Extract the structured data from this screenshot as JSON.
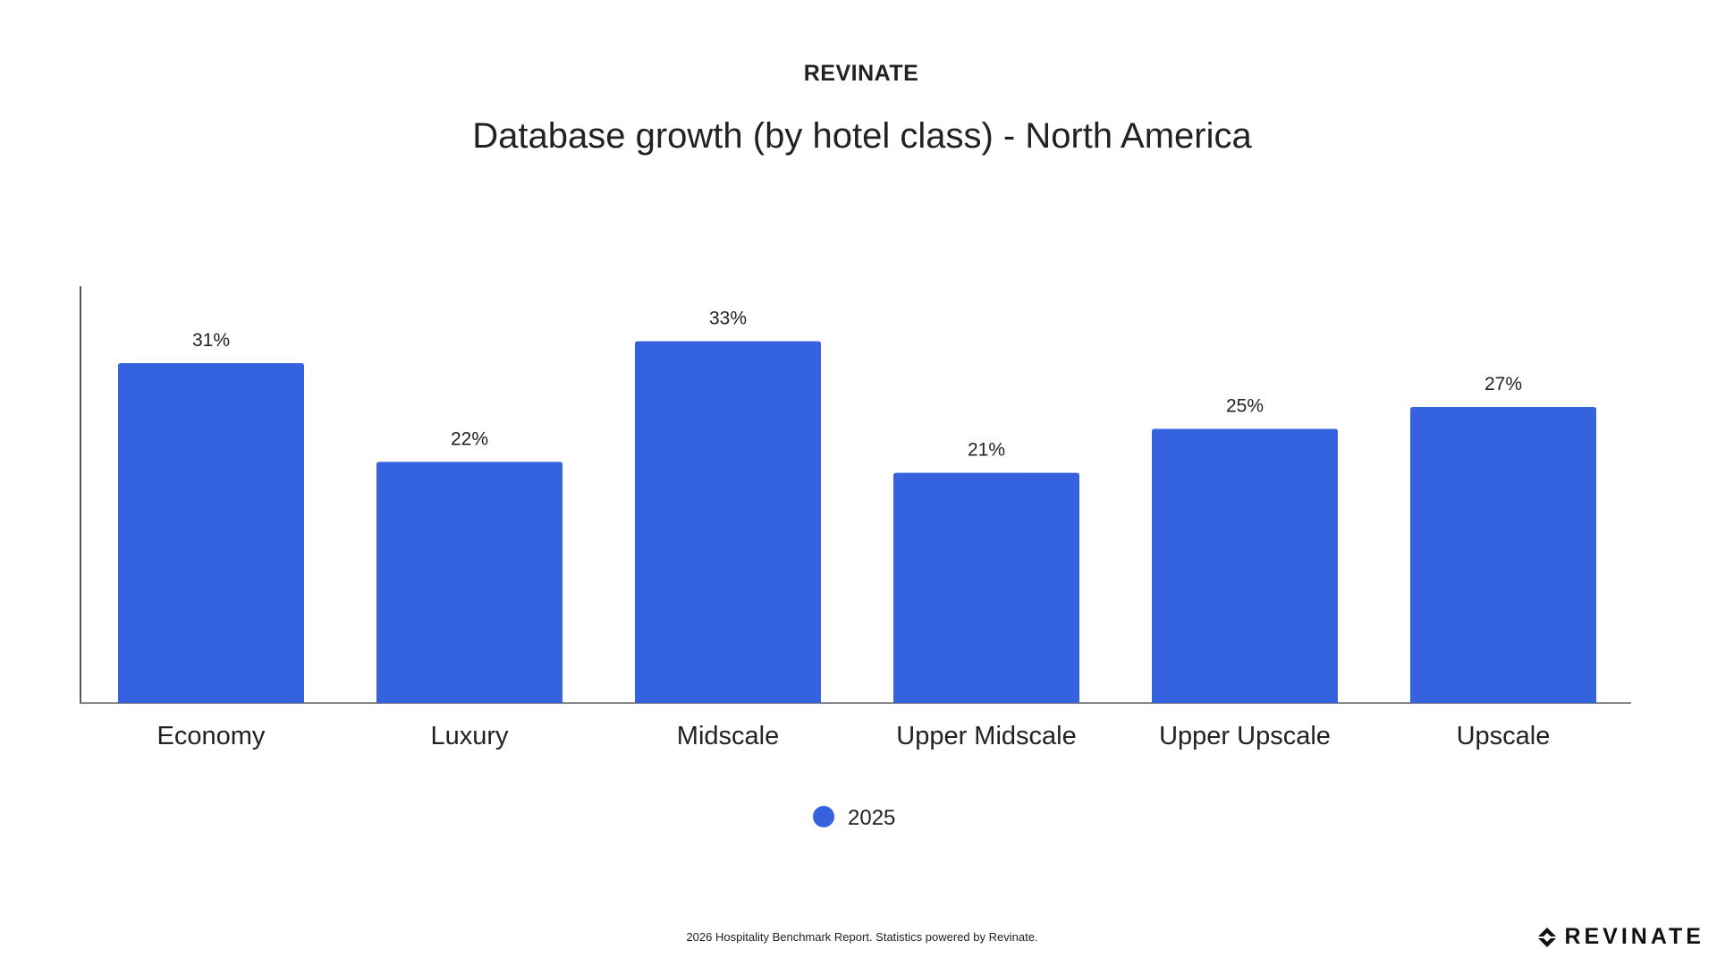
{
  "header": {
    "brand": "REVINATE"
  },
  "chart_data": {
    "type": "bar",
    "title": "Database growth (by hotel class) - North America",
    "categories": [
      "Economy",
      "Luxury",
      "Midscale",
      "Upper Midscale",
      "Upper Upscale",
      "Upscale"
    ],
    "series": [
      {
        "name": "2025",
        "values": [
          31,
          22,
          33,
          21,
          25,
          27
        ],
        "labels": [
          "31%",
          "22%",
          "33%",
          "21%",
          "25%",
          "27%"
        ],
        "color": "#3563e0"
      }
    ],
    "ylim": [
      0,
      40
    ],
    "xlabel": "",
    "ylabel": "",
    "grid": false,
    "legend_position": "bottom-center"
  },
  "footer": {
    "note": "2026 Hospitality Benchmark Report. Statistics powered by Revinate.",
    "logo_text": "REVINATE",
    "logo_icon": "revinate-logo-icon"
  }
}
